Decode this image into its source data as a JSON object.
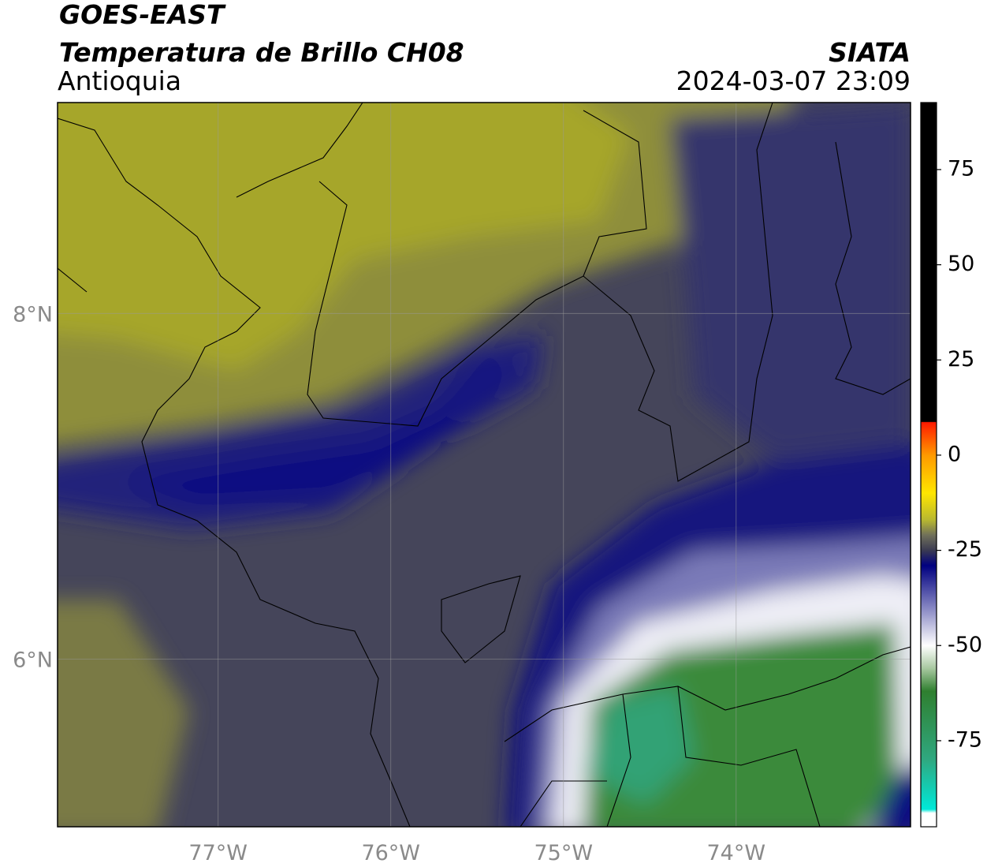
{
  "map": {
    "title": "GOES-EAST",
    "subtitle": "Temperatura de Brillo CH08",
    "source": "SIATA",
    "region": "Antioquia",
    "datetime": "2024-03-07 23:09",
    "xlim": [
      -77.93,
      -72.99
    ],
    "ylim": [
      5.03,
      9.22
    ],
    "xticks": [
      {
        "value": -77,
        "label": "77°W"
      },
      {
        "value": -76,
        "label": "76°W"
      },
      {
        "value": -75,
        "label": "75°W"
      },
      {
        "value": -74,
        "label": "74°W"
      }
    ],
    "yticks": [
      {
        "value": 6,
        "label": "6°N"
      },
      {
        "value": 8,
        "label": "8°N"
      }
    ],
    "grid": true,
    "colorbar": {
      "clim": [
        -97.6,
        92.6
      ],
      "ticks": [
        75,
        50,
        25,
        0,
        -25,
        -50,
        -75
      ],
      "colormap": [
        {
          "value": 92.6,
          "color": "#000000"
        },
        {
          "value": 8.8,
          "color": "#000000"
        },
        {
          "value": 8.6,
          "color": "#ff1a00"
        },
        {
          "value": 0,
          "color": "#ff9900"
        },
        {
          "value": -10,
          "color": "#ffe600"
        },
        {
          "value": -17,
          "color": "#b8b830"
        },
        {
          "value": -21,
          "color": "#70705a"
        },
        {
          "value": -25,
          "color": "#3a3a52"
        },
        {
          "value": -29,
          "color": "#000080"
        },
        {
          "value": -40,
          "color": "#8585c2"
        },
        {
          "value": -50,
          "color": "#ffffff"
        },
        {
          "value": -56,
          "color": "#a8c8a0"
        },
        {
          "value": -62,
          "color": "#2f7f2f"
        },
        {
          "value": -80,
          "color": "#2fa880"
        },
        {
          "value": -93,
          "color": "#00e8d8"
        },
        {
          "value": -94,
          "color": "#ffffff"
        },
        {
          "value": -97.6,
          "color": "#ffffff"
        }
      ]
    }
  }
}
